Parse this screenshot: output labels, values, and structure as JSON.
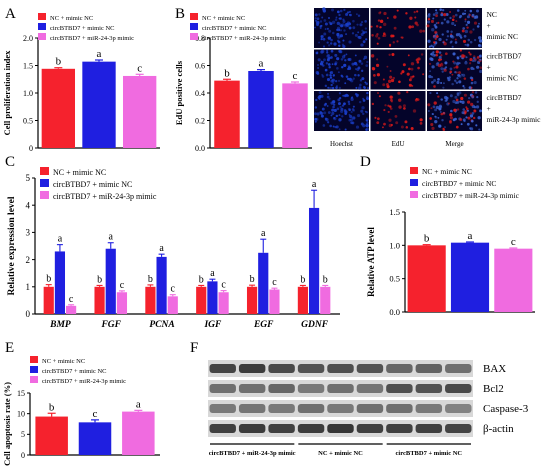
{
  "panel_labels": {
    "A": "A",
    "B": "B",
    "C": "C",
    "D": "D",
    "E": "E",
    "F": "F"
  },
  "legend": [
    {
      "label": "NC + mimic NC",
      "color": "#f5222d"
    },
    {
      "label": "circBTBD7 + mimic NC",
      "color": "#1f1fe0"
    },
    {
      "label": "circBTBD7 + miR-24-3p mimic",
      "color": "#f06be0"
    }
  ],
  "micro": {
    "columns": [
      "Hoechst",
      "EdU",
      "Merge"
    ],
    "rows": [
      [
        "NC",
        "+",
        "mimic NC"
      ],
      [
        "circBTBD7",
        "+",
        "mimic NC"
      ],
      [
        "circBTBD7",
        "+",
        "miR-24-3p mimic"
      ]
    ],
    "colors": {
      "hoechst": "#1a3ec8",
      "edu": "#d81a1a",
      "merge": "#3a60d0",
      "background": "#04042a"
    }
  },
  "blot": {
    "bands": [
      "BAX",
      "Bcl2",
      "Caspase-3",
      "β-actin"
    ],
    "groups": [
      "circBTBD7 + miR-24-3p mimic",
      "NC + mimic NC",
      "circBTBD7 + mimic NC"
    ],
    "lanes_per_group": 3
  },
  "chart_data": [
    {
      "id": "A",
      "type": "bar",
      "ylabel": "Cell proliferation index",
      "ylim": [
        0,
        2.0
      ],
      "yticks": [
        0,
        0.5,
        1.0,
        1.5,
        2.0
      ],
      "series": [
        {
          "name": "NC + mimic NC",
          "value": 1.44,
          "error": 0.02,
          "letter": "b"
        },
        {
          "name": "circBTBD7 + mimic NC",
          "value": 1.57,
          "error": 0.03,
          "letter": "a"
        },
        {
          "name": "circBTBD7 + miR-24-3p mimic",
          "value": 1.31,
          "error": 0.03,
          "letter": "c"
        }
      ]
    },
    {
      "id": "B",
      "type": "bar",
      "ylabel": "EdU positive cells",
      "ylim": [
        0,
        0.8
      ],
      "yticks": [
        0.0,
        0.2,
        0.4,
        0.6,
        0.8
      ],
      "series": [
        {
          "name": "NC + mimic NC",
          "value": 0.49,
          "error": 0.01,
          "letter": "b"
        },
        {
          "name": "circBTBD7 + mimic NC",
          "value": 0.56,
          "error": 0.01,
          "letter": "a"
        },
        {
          "name": "circBTBD7 + miR-24-3p mimic",
          "value": 0.47,
          "error": 0.01,
          "letter": "c"
        }
      ]
    },
    {
      "id": "C",
      "type": "bar",
      "ylabel": "Relative  expression level",
      "ylim": [
        0,
        5
      ],
      "yticks": [
        0,
        1,
        2,
        3,
        4,
        5
      ],
      "categories": [
        "BMP",
        "FGF",
        "PCNA",
        "IGF",
        "EGF",
        "GDNF"
      ],
      "series": [
        {
          "name": "NC + mimic NC",
          "values": [
            1.0,
            1.0,
            1.0,
            1.0,
            1.0,
            1.0
          ],
          "errors": [
            0.08,
            0.05,
            0.07,
            0.05,
            0.06,
            0.05
          ],
          "letters": [
            "b",
            "b",
            "b",
            "b",
            "b",
            "b"
          ]
        },
        {
          "name": "circBTBD7 + mimic NC",
          "values": [
            2.3,
            2.4,
            2.1,
            1.2,
            2.25,
            3.9
          ],
          "errors": [
            0.25,
            0.22,
            0.1,
            0.08,
            0.5,
            0.65
          ],
          "letters": [
            "a",
            "a",
            "a",
            "a",
            "a",
            "a"
          ]
        },
        {
          "name": "circBTBD7 + miR-24-3p mimic",
          "values": [
            0.3,
            0.8,
            0.65,
            0.8,
            0.9,
            1.0
          ],
          "errors": [
            0.04,
            0.05,
            0.06,
            0.06,
            0.05,
            0.05
          ],
          "letters": [
            "c",
            "c",
            "c",
            "c",
            "c",
            "b"
          ]
        }
      ]
    },
    {
      "id": "D",
      "type": "bar",
      "ylabel": "Relative ATP level",
      "ylim": [
        0,
        1.5
      ],
      "yticks": [
        0.0,
        0.5,
        1.0,
        1.5
      ],
      "series": [
        {
          "name": "NC + mimic NC",
          "value": 1.0,
          "error": 0.01,
          "letter": "b"
        },
        {
          "name": "circBTBD7 + mimic NC",
          "value": 1.04,
          "error": 0.01,
          "letter": "a"
        },
        {
          "name": "circBTBD7 + miR-24-3p mimic",
          "value": 0.95,
          "error": 0.01,
          "letter": "c"
        }
      ]
    },
    {
      "id": "E",
      "type": "bar",
      "ylabel": "Cell apoptosis rate (%)",
      "ylim": [
        0,
        15
      ],
      "yticks": [
        0,
        5,
        10,
        15
      ],
      "series": [
        {
          "name": "NC + mimic NC",
          "value": 9.3,
          "error": 0.8,
          "letter": "b"
        },
        {
          "name": "circBTBD7 + mimic NC",
          "value": 7.9,
          "error": 0.6,
          "letter": "c"
        },
        {
          "name": "circBTBD7 + miR-24-3p mimic",
          "value": 10.5,
          "error": 0.3,
          "letter": "a"
        }
      ]
    }
  ]
}
